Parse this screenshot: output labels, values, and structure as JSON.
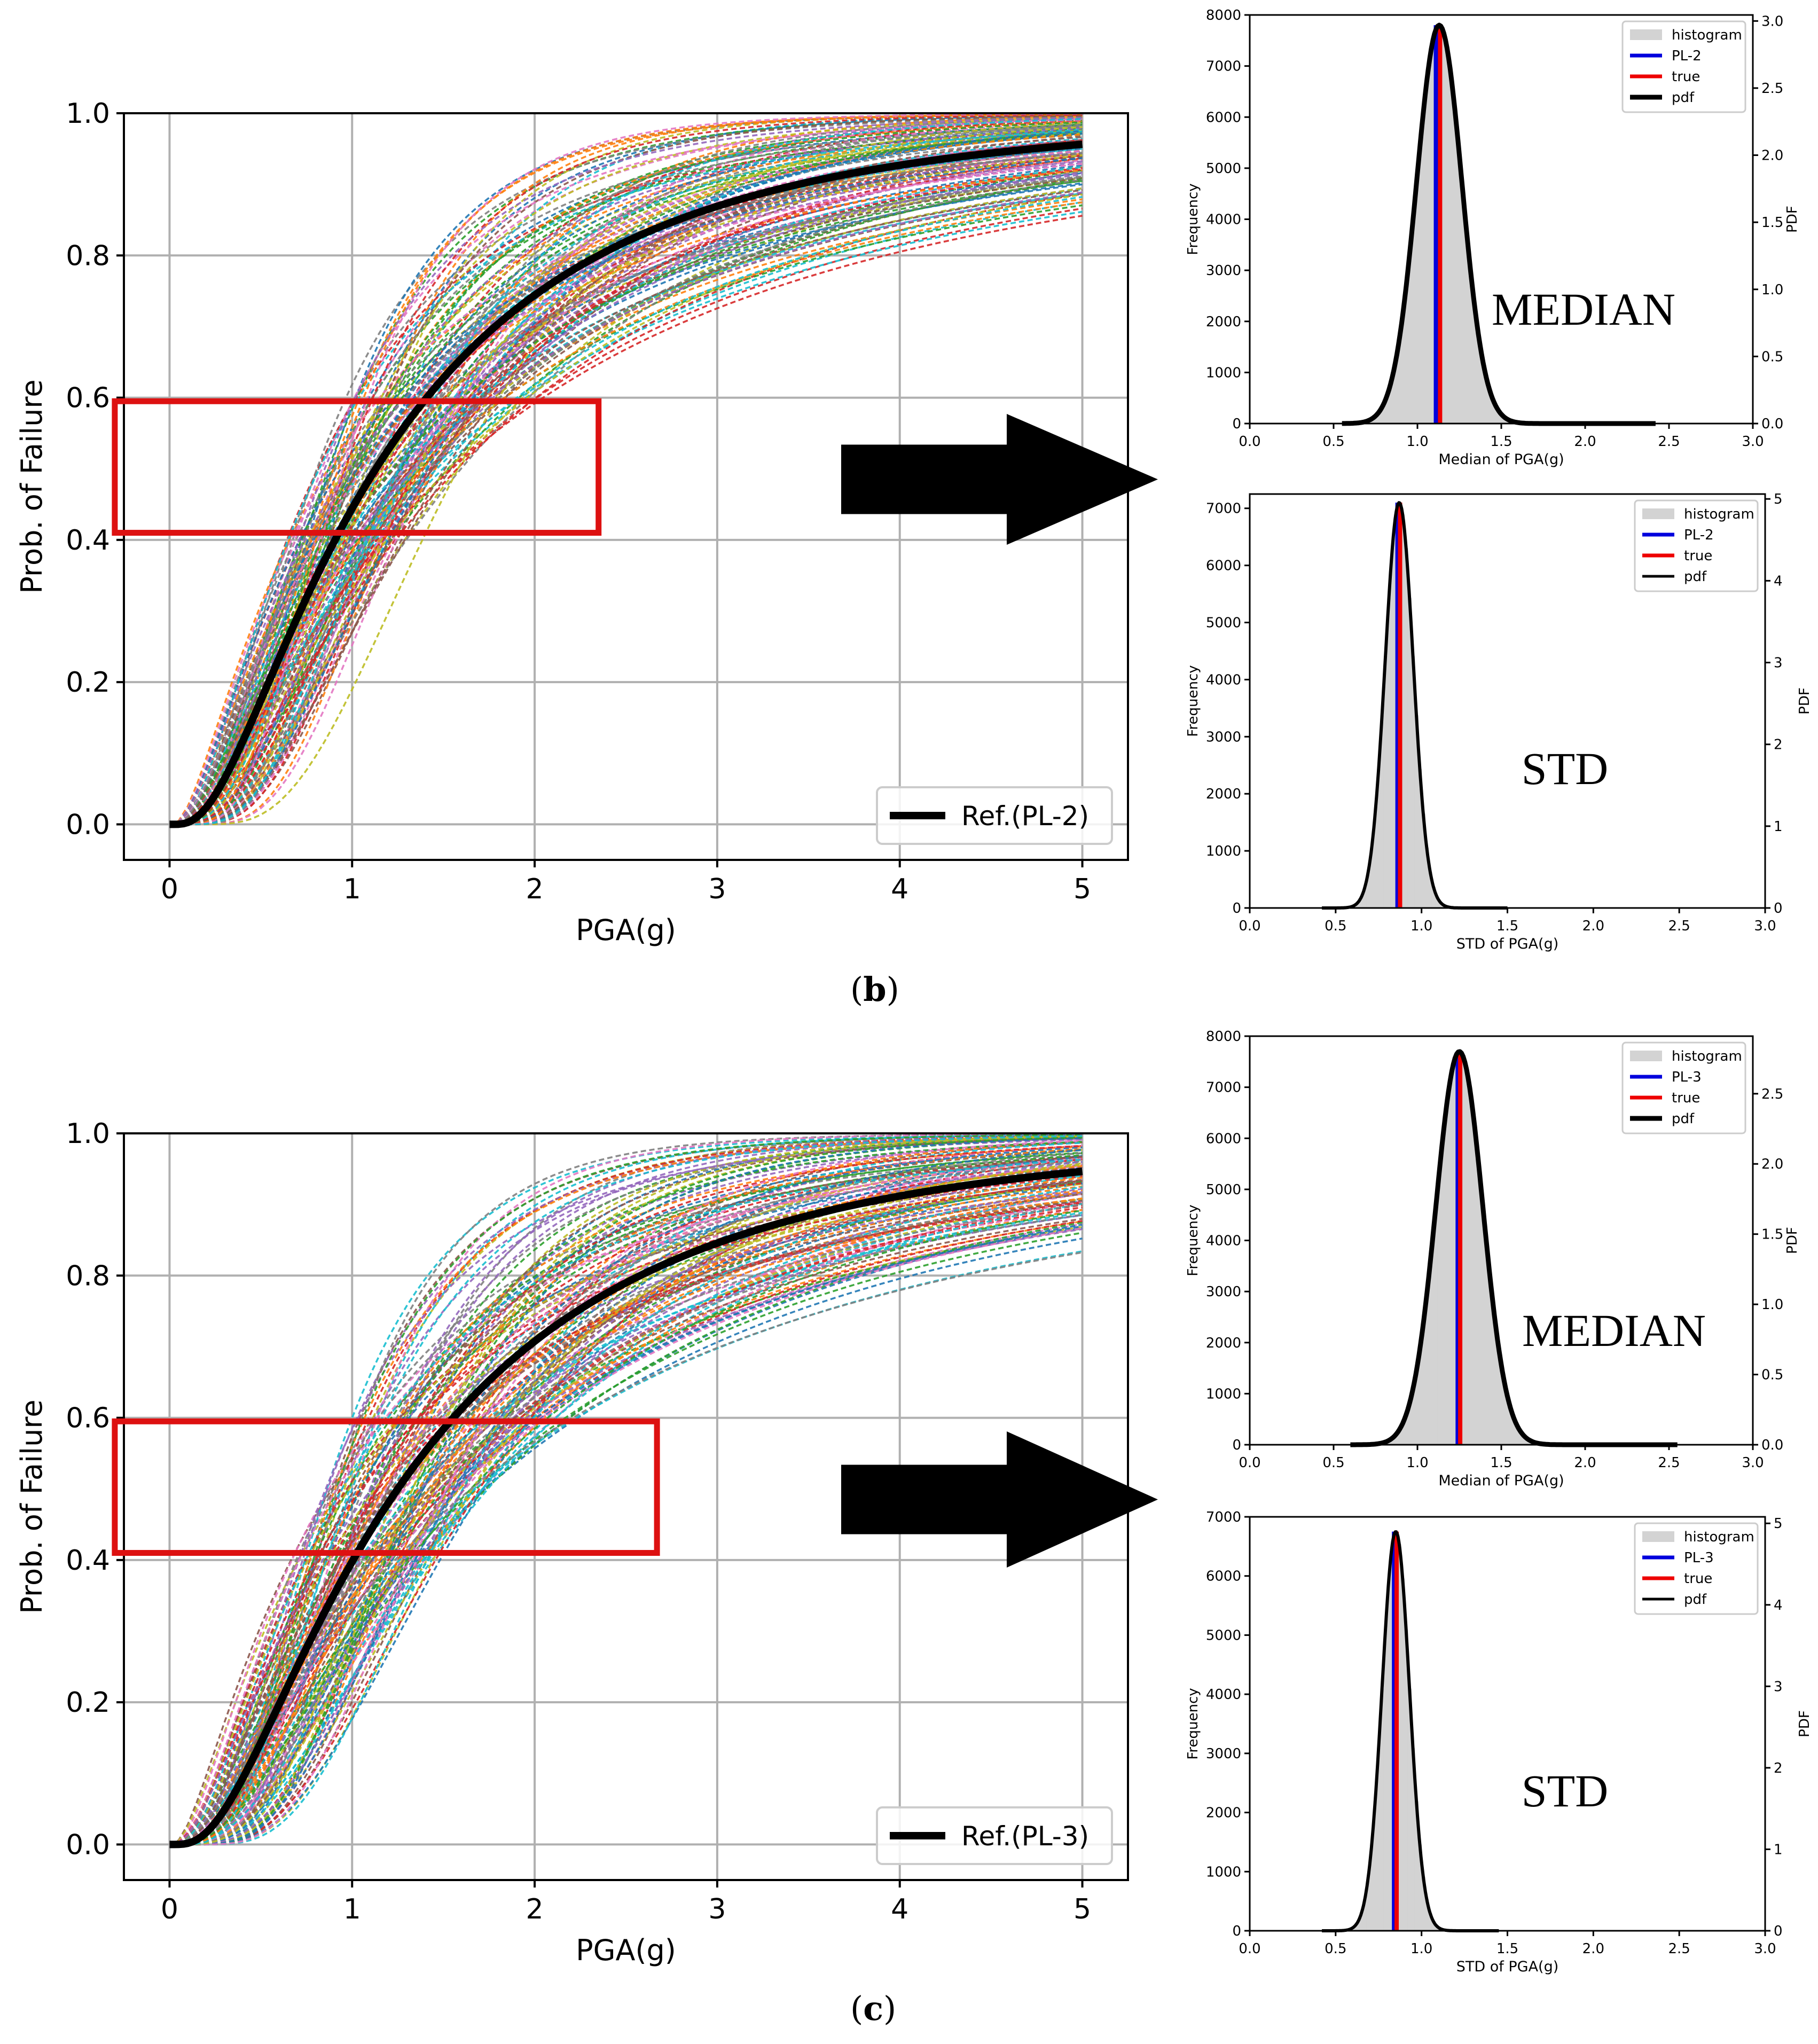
{
  "captions": {
    "b": "b",
    "c": "c"
  },
  "chart_data": [
    {
      "id": "fragility_b",
      "type": "line",
      "xlabel": "PGA(g)",
      "ylabel": "Prob. of Failure",
      "xlim": [
        -0.25,
        5.25
      ],
      "ylim": [
        -0.05,
        1.0
      ],
      "xticks": [
        0,
        1,
        2,
        3,
        4,
        5
      ],
      "yticks": [
        0.0,
        0.2,
        0.4,
        0.6,
        0.8,
        1.0
      ],
      "tick_labels_x": [
        "0",
        "1",
        "2",
        "3",
        "4",
        "5"
      ],
      "tick_labels_y": [
        "0.0",
        "0.2",
        "0.4",
        "0.6",
        "0.8",
        "1.0"
      ],
      "grid": true,
      "legend": {
        "placement": "bottom-right",
        "entries": [
          "Ref.(PL-2)"
        ]
      },
      "reference_curve": {
        "name": "Ref.(PL-2)",
        "median": 1.13,
        "beta": 0.87,
        "color": "#000000"
      },
      "sample_curves": {
        "median_range": [
          0.8,
          1.6
        ],
        "beta_range": [
          0.5,
          1.15
        ],
        "style": "dashed",
        "colors": [
          "#1f77b4",
          "#ff7f0e",
          "#2ca02c",
          "#d62728",
          "#9467bd",
          "#8c564b",
          "#e377c2",
          "#7f7f7f",
          "#bcbd22",
          "#17becf"
        ]
      },
      "highlight_box": {
        "x": [
          -0.3,
          2.35
        ],
        "y": [
          0.41,
          0.595
        ],
        "color": "#dd1111"
      }
    },
    {
      "id": "fragility_c",
      "type": "line",
      "xlabel": "PGA(g)",
      "ylabel": "Prob. of Failure",
      "xlim": [
        -0.25,
        5.25
      ],
      "ylim": [
        -0.05,
        1.0
      ],
      "xticks": [
        0,
        1,
        2,
        3,
        4,
        5
      ],
      "yticks": [
        0.0,
        0.2,
        0.4,
        0.6,
        0.8,
        1.0
      ],
      "tick_labels_x": [
        "0",
        "1",
        "2",
        "3",
        "4",
        "5"
      ],
      "tick_labels_y": [
        "0.0",
        "0.2",
        "0.4",
        "0.6",
        "0.8",
        "1.0"
      ],
      "grid": true,
      "legend": {
        "placement": "bottom-right",
        "entries": [
          "Ref.(PL-3)"
        ]
      },
      "reference_curve": {
        "name": "Ref.(PL-3)",
        "median": 1.25,
        "beta": 0.86,
        "color": "#000000"
      },
      "sample_curves": {
        "median_range": [
          0.85,
          1.75
        ],
        "beta_range": [
          0.5,
          1.15
        ],
        "style": "dashed",
        "colors": [
          "#1f77b4",
          "#ff7f0e",
          "#2ca02c",
          "#d62728",
          "#9467bd",
          "#8c564b",
          "#e377c2",
          "#7f7f7f",
          "#bcbd22",
          "#17becf"
        ]
      },
      "highlight_box": {
        "x": [
          -0.3,
          2.67
        ],
        "y": [
          0.41,
          0.595
        ],
        "color": "#dd1111"
      }
    },
    {
      "id": "hist_median_b",
      "type": "bar",
      "annotation": "MEDIAN",
      "xlabel": "Median of PGA(g)",
      "ylabel": "Frequency",
      "y2label": "PDF",
      "xlim": [
        0.0,
        3.0
      ],
      "ylim": [
        0,
        8000
      ],
      "y2lim": [
        0,
        3.045
      ],
      "xticks": [
        0.0,
        0.5,
        1.0,
        1.5,
        2.0,
        2.5,
        3.0
      ],
      "tick_labels_x": [
        "0.0",
        "0.5",
        "1.0",
        "1.5",
        "2.0",
        "2.5",
        "3.0"
      ],
      "yticks": [
        0,
        1000,
        2000,
        3000,
        4000,
        5000,
        6000,
        7000,
        8000
      ],
      "tick_labels_y": [
        "0",
        "1000",
        "2000",
        "3000",
        "4000",
        "5000",
        "6000",
        "7000",
        "8000"
      ],
      "y2ticks": [
        0.0,
        0.5,
        1.0,
        1.5,
        2.0,
        2.5,
        3.0
      ],
      "tick_labels_y2": [
        "0.0",
        "0.5",
        "1.0",
        "1.5",
        "2.0",
        "2.5",
        "3.0"
      ],
      "distribution": {
        "mean": 1.13,
        "std": 0.135,
        "peak_frequency": 7800,
        "pdf_range": [
          0.55,
          2.42
        ],
        "hist_range": [
          0.62,
          1.78
        ]
      },
      "lines": [
        {
          "name": "PL-2",
          "x": 1.11,
          "color": "#0000dd"
        },
        {
          "name": "true",
          "x": 1.135,
          "color": "#ee0000"
        }
      ],
      "legend": {
        "placement": "top-right",
        "entries": [
          "histogram",
          "PL-2",
          "true",
          "pdf"
        ]
      },
      "pdf_line_width": 9
    },
    {
      "id": "hist_std_b",
      "type": "bar",
      "annotation": "STD",
      "xlabel": "STD of PGA(g)",
      "ylabel": "Frequency",
      "y2label": "PDF",
      "xlim": [
        0.0,
        3.0
      ],
      "ylim": [
        0,
        7250
      ],
      "y2lim": [
        0,
        5.06
      ],
      "xticks": [
        0.0,
        0.5,
        1.0,
        1.5,
        2.0,
        2.5,
        3.0
      ],
      "tick_labels_x": [
        "0.0",
        "0.5",
        "1.0",
        "1.5",
        "2.0",
        "2.5",
        "3.0"
      ],
      "yticks": [
        0,
        1000,
        2000,
        3000,
        4000,
        5000,
        6000,
        7000
      ],
      "tick_labels_y": [
        "0",
        "1000",
        "2000",
        "3000",
        "4000",
        "5000",
        "6000",
        "7000"
      ],
      "y2ticks": [
        0,
        1,
        2,
        3,
        4,
        5
      ],
      "tick_labels_y2": [
        "0",
        "1",
        "2",
        "3",
        "4",
        "5"
      ],
      "distribution": {
        "mean": 0.87,
        "std": 0.082,
        "peak_frequency": 7100,
        "pdf_range": [
          0.42,
          1.5
        ],
        "hist_range": [
          0.5,
          1.25
        ]
      },
      "lines": [
        {
          "name": "PL-2",
          "x": 0.86,
          "color": "#0000dd"
        },
        {
          "name": "true",
          "x": 0.875,
          "color": "#ee0000"
        }
      ],
      "legend": {
        "placement": "top-right",
        "entries": [
          "histogram",
          "PL-2",
          "true",
          "pdf"
        ]
      },
      "pdf_line_width": 6
    },
    {
      "id": "hist_median_c",
      "type": "bar",
      "annotation": "MEDIAN",
      "xlabel": "Median of PGA(g)",
      "ylabel": "Frequency",
      "y2label": "PDF",
      "xlim": [
        0.0,
        3.0
      ],
      "ylim": [
        0,
        8000
      ],
      "y2lim": [
        0,
        2.91
      ],
      "xticks": [
        0.0,
        0.5,
        1.0,
        1.5,
        2.0,
        2.5,
        3.0
      ],
      "tick_labels_x": [
        "0.0",
        "0.5",
        "1.0",
        "1.5",
        "2.0",
        "2.5",
        "3.0"
      ],
      "yticks": [
        0,
        1000,
        2000,
        3000,
        4000,
        5000,
        6000,
        7000,
        8000
      ],
      "tick_labels_y": [
        "0",
        "1000",
        "2000",
        "3000",
        "4000",
        "5000",
        "6000",
        "7000",
        "8000"
      ],
      "y2ticks": [
        0.0,
        0.5,
        1.0,
        1.5,
        2.0,
        2.5
      ],
      "tick_labels_y2": [
        "0.0",
        "0.5",
        "1.0",
        "1.5",
        "2.0",
        "2.5"
      ],
      "distribution": {
        "mean": 1.25,
        "std": 0.14,
        "peak_frequency": 7700,
        "pdf_range": [
          0.6,
          2.55
        ],
        "hist_range": [
          0.7,
          1.9
        ]
      },
      "lines": [
        {
          "name": "PL-3",
          "x": 1.24,
          "color": "#0000dd"
        },
        {
          "name": "true",
          "x": 1.255,
          "color": "#ee0000"
        }
      ],
      "legend": {
        "placement": "top-right",
        "entries": [
          "histogram",
          "PL-3",
          "true",
          "pdf"
        ]
      },
      "pdf_line_width": 9
    },
    {
      "id": "hist_std_c",
      "type": "bar",
      "annotation": "STD",
      "xlabel": "STD of PGA(g)",
      "ylabel": "Frequency",
      "y2label": "PDF",
      "xlim": [
        0.0,
        3.0
      ],
      "ylim": [
        0,
        7000
      ],
      "y2lim": [
        0,
        5.08
      ],
      "xticks": [
        0.0,
        0.5,
        1.0,
        1.5,
        2.0,
        2.5,
        3.0
      ],
      "tick_labels_x": [
        "0.0",
        "0.5",
        "1.0",
        "1.5",
        "2.0",
        "2.5",
        "3.0"
      ],
      "yticks": [
        0,
        1000,
        2000,
        3000,
        4000,
        5000,
        6000,
        7000
      ],
      "tick_labels_y": [
        "0",
        "1000",
        "2000",
        "3000",
        "4000",
        "5000",
        "6000",
        "7000"
      ],
      "y2ticks": [
        0,
        1,
        2,
        3,
        4,
        5
      ],
      "tick_labels_y2": [
        "0",
        "1",
        "2",
        "3",
        "4",
        "5"
      ],
      "distribution": {
        "mean": 0.85,
        "std": 0.08,
        "peak_frequency": 6750,
        "pdf_range": [
          0.42,
          1.45
        ],
        "hist_range": [
          0.5,
          1.25
        ]
      },
      "lines": [
        {
          "name": "PL-3",
          "x": 0.84,
          "color": "#0000dd"
        },
        {
          "name": "true",
          "x": 0.855,
          "color": "#ee0000"
        }
      ],
      "legend": {
        "placement": "top-right",
        "entries": [
          "histogram",
          "PL-3",
          "true",
          "pdf"
        ]
      },
      "pdf_line_width": 6
    }
  ]
}
